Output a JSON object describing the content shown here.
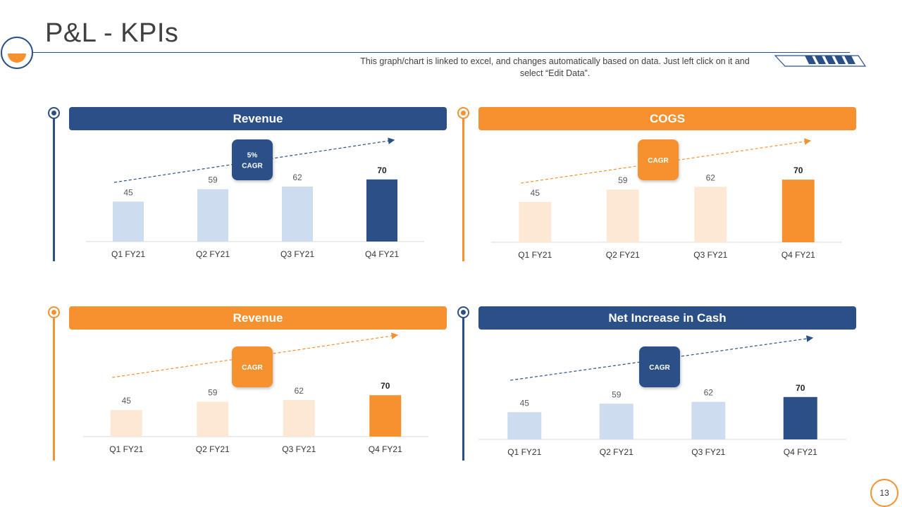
{
  "header": {
    "title": "P&L - KPIs",
    "subtitle": "This graph/chart is linked to excel, and changes automatically based on data. Just left click on it and select “Edit Data”."
  },
  "page_number": "13",
  "colors": {
    "blue": "#2b5088",
    "blue_light": "#cddcef",
    "orange": "#f5922f",
    "orange_light": "#fde8d6",
    "title_text": "#404040"
  },
  "chart_data": [
    {
      "type": "bar",
      "title": "Revenue",
      "theme": "blue",
      "categories": [
        "Q1 FY21",
        "Q2 FY21",
        "Q3 FY21",
        "Q4 FY21"
      ],
      "values": [
        45,
        59,
        62,
        70
      ],
      "badge": "5%\nCAGR",
      "xlabel": "",
      "ylabel": "",
      "ylim": [
        0,
        80
      ],
      "grid": false
    },
    {
      "type": "bar",
      "title": "COGS",
      "theme": "orange",
      "categories": [
        "Q1 FY21",
        "Q2 FY21",
        "Q3 FY21",
        "Q4 FY21"
      ],
      "values": [
        45,
        59,
        62,
        70
      ],
      "badge": "CAGR",
      "xlabel": "",
      "ylabel": "",
      "ylim": [
        0,
        80
      ],
      "grid": false
    },
    {
      "type": "bar",
      "title": "Revenue",
      "theme": "orange",
      "categories": [
        "Q1 FY21",
        "Q2 FY21",
        "Q3 FY21",
        "Q4 FY21"
      ],
      "values": [
        45,
        59,
        62,
        70
      ],
      "badge": "CAGR",
      "xlabel": "",
      "ylabel": "",
      "ylim": [
        0,
        80
      ],
      "grid": false
    },
    {
      "type": "bar",
      "title": "Net Increase in Cash",
      "theme": "blue",
      "categories": [
        "Q1 FY21",
        "Q2 FY21",
        "Q3 FY21",
        "Q4 FY21"
      ],
      "values": [
        45,
        59,
        62,
        70
      ],
      "badge": "CAGR",
      "xlabel": "",
      "ylabel": "",
      "ylim": [
        0,
        80
      ],
      "grid": false
    }
  ]
}
